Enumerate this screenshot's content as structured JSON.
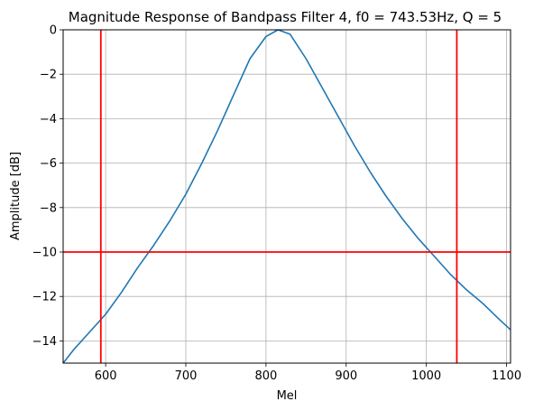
{
  "chart_data": {
    "type": "line",
    "title": "Magnitude Response of Bandpass Filter 4, f0 = 743.53Hz, Q = 5",
    "xlabel": "Mel",
    "ylabel": "Amplitude [dB]",
    "xlim": [
      547,
      1105
    ],
    "ylim": [
      -15,
      0
    ],
    "xticks": [
      600,
      700,
      800,
      900,
      1000,
      1100
    ],
    "xtick_labels": [
      "600",
      "700",
      "800",
      "900",
      "1000",
      "1100"
    ],
    "yticks": [
      0,
      -2,
      -4,
      -6,
      -8,
      -10,
      -12,
      -14
    ],
    "ytick_labels": [
      "0",
      "−2",
      "−4",
      "−6",
      "−8",
      "−10",
      "−12",
      "−14"
    ],
    "grid": true,
    "series": [
      {
        "color": "#1f77b4",
        "x": [
          547,
          560,
          580,
          600,
          620,
          640,
          660,
          680,
          700,
          720,
          740,
          760,
          780,
          800,
          815,
          830,
          850,
          870,
          890,
          910,
          930,
          950,
          970,
          990,
          1010,
          1030,
          1050,
          1070,
          1090,
          1105
        ],
        "y": [
          -15.0,
          -14.4,
          -13.6,
          -12.8,
          -11.8,
          -10.7,
          -9.7,
          -8.6,
          -7.4,
          -6.0,
          -4.5,
          -2.9,
          -1.3,
          -0.3,
          0.0,
          -0.2,
          -1.3,
          -2.6,
          -3.9,
          -5.2,
          -6.4,
          -7.5,
          -8.5,
          -9.4,
          -10.2,
          -11.0,
          -11.7,
          -12.3,
          -13.0,
          -13.5
        ]
      }
    ],
    "reference_lines": {
      "color": "#ff0000",
      "vertical_x": [
        594,
        1038
      ],
      "horizontal_y": [
        -10
      ]
    }
  }
}
